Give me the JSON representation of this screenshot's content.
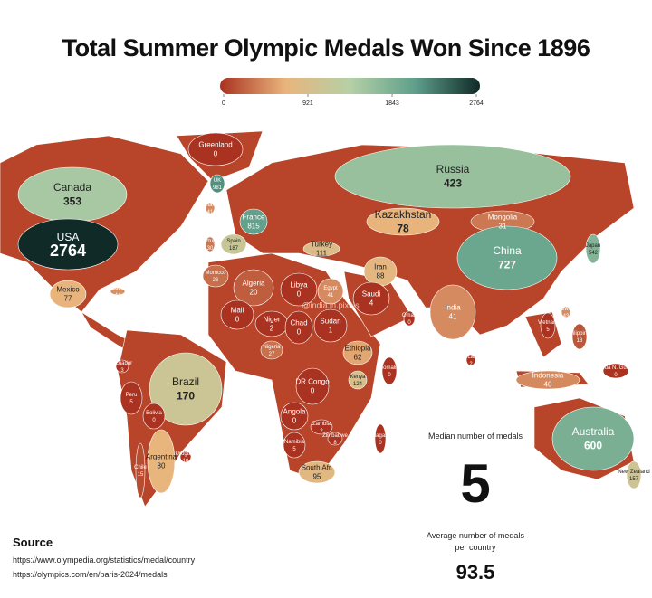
{
  "title": "Total Summer Olympic Medals Won Since 1896",
  "legend": {
    "ticks": [
      0,
      921,
      1843,
      2764
    ],
    "colorscale": [
      "#a93220",
      "#e9b47c",
      "#b5d0a6",
      "#5f9f8b",
      "#0f2a27"
    ]
  },
  "countries": [
    {
      "name": "Greenland",
      "value": 0
    },
    {
      "name": "Canada",
      "value": 353
    },
    {
      "name": "USA",
      "value": 2764
    },
    {
      "name": "Mexico",
      "value": 77
    },
    {
      "name": "Cuba",
      "value": 44
    },
    {
      "name": "UK",
      "value": 981
    },
    {
      "name": "Ireland",
      "value": 41
    },
    {
      "name": "France",
      "value": 815
    },
    {
      "name": "Spain",
      "value": 187
    },
    {
      "name": "Portugal",
      "value": 30
    },
    {
      "name": "Morocco",
      "value": 26
    },
    {
      "name": "Algeria",
      "value": 20
    },
    {
      "name": "Libya",
      "value": 0
    },
    {
      "name": "Egypt",
      "value": 41
    },
    {
      "name": "Mali",
      "value": 0
    },
    {
      "name": "Niger",
      "value": 2
    },
    {
      "name": "Chad",
      "value": 0
    },
    {
      "name": "Sudan",
      "value": 1
    },
    {
      "name": "Nigeria",
      "value": 27
    },
    {
      "name": "Ethiopia",
      "value": 62
    },
    {
      "name": "Kenya",
      "value": 124
    },
    {
      "name": "Somalia",
      "value": 0
    },
    {
      "name": "DR Congo",
      "value": 0
    },
    {
      "name": "Angola",
      "value": 0
    },
    {
      "name": "Zambia",
      "value": 2
    },
    {
      "name": "Namibia",
      "value": 5
    },
    {
      "name": "Zimbabwe",
      "value": 8
    },
    {
      "name": "Madagascar",
      "value": 0
    },
    {
      "name": "South Afr.",
      "value": 95
    },
    {
      "name": "Turkey",
      "value": 111
    },
    {
      "name": "Iran",
      "value": 88
    },
    {
      "name": "Saudi",
      "value": 4
    },
    {
      "name": "Oman",
      "value": 0
    },
    {
      "name": "India",
      "value": 41
    },
    {
      "name": "Kazakhstan",
      "value": 78
    },
    {
      "name": "Mongolia",
      "value": 31
    },
    {
      "name": "China",
      "value": 727
    },
    {
      "name": "Russia",
      "value": 423
    },
    {
      "name": "Japan",
      "value": 542
    },
    {
      "name": "Taiwan",
      "value": 43
    },
    {
      "name": "Philippines",
      "value": 18
    },
    {
      "name": "Vietnam",
      "value": 5
    },
    {
      "name": "Sri Lanka",
      "value": 2
    },
    {
      "name": "Indonesia",
      "value": 40
    },
    {
      "name": "Papua N. Guinea",
      "value": 0
    },
    {
      "name": "Australia",
      "value": 600
    },
    {
      "name": "New Zealand",
      "value": 157
    },
    {
      "name": "Brazil",
      "value": 170
    },
    {
      "name": "Bolivia",
      "value": 0
    },
    {
      "name": "Peru",
      "value": 5
    },
    {
      "name": "Ecuador",
      "value": 3
    },
    {
      "name": "Chile",
      "value": 15
    },
    {
      "name": "Argentina",
      "value": 80
    },
    {
      "name": "Uruguay",
      "value": 10
    }
  ],
  "watermark": "@india.in.pixels",
  "stats": {
    "median_label": "Median number of medals",
    "median": 5,
    "average_label": "Average number of medals per country",
    "average": 93.5
  },
  "source": {
    "title": "Source",
    "links": [
      "https://www.olympedia.org/statistics/medal/country",
      "https://olympics.com/en/paris-2024/medals"
    ]
  }
}
